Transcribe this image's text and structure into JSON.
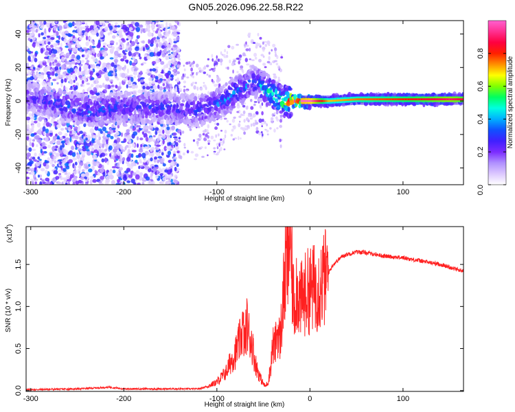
{
  "figure_title": "GN05.2026.096.22.58.R22",
  "colors": {
    "series": "#ff2020",
    "axis": "#000000",
    "colormap": [
      "#ffffff",
      "#dcc8ff",
      "#b090ff",
      "#7b2cff",
      "#4020ff",
      "#1050ff",
      "#00b0ff",
      "#00ffe0",
      "#00ff60",
      "#80ff00",
      "#ffff00",
      "#ff9000",
      "#ff2000",
      "#ff0040",
      "#ff3090",
      "#ff60d0"
    ]
  },
  "chart_data": [
    {
      "type": "heatmap",
      "title": "",
      "xlabel": "Height of straight line (km)",
      "ylabel": "Frequency (Hz)",
      "xlim": [
        -305,
        165
      ],
      "ylim": [
        -50,
        48
      ],
      "xticks": [
        -300,
        -200,
        -100,
        0,
        100
      ],
      "yticks": [
        -40,
        -20,
        0,
        20,
        40
      ],
      "grid": false,
      "colorbar": {
        "label": "Normalized spectral amplitude",
        "range": [
          0,
          1
        ],
        "ticks": [
          "0.0",
          "0.2",
          "0.4",
          "0.6",
          "0.8"
        ],
        "tick_values": [
          0.0,
          0.2,
          0.4,
          0.6,
          0.8
        ]
      },
      "description_points": {
        "height_km": [
          -300,
          -240,
          -200,
          -150,
          -120,
          -100,
          -80,
          -60,
          -45,
          -30,
          -15,
          0,
          20,
          50,
          100,
          150,
          165
        ],
        "ridge_frequency_hz": [
          2,
          -6,
          -4,
          -4,
          -6,
          -2,
          5,
          12,
          6,
          0,
          0,
          0,
          0,
          1,
          1,
          1,
          1
        ],
        "ridge_amplitude": [
          0.25,
          0.35,
          0.3,
          0.3,
          0.3,
          0.35,
          0.4,
          0.35,
          0.5,
          0.6,
          0.95,
          0.9,
          0.6,
          0.65,
          0.7,
          0.8,
          0.75
        ]
      }
    },
    {
      "type": "line",
      "title": "",
      "xlabel": "Height of straight line (km)",
      "ylabel": "SNR (10 * v/v)",
      "y_scale_label": "(x10",
      "y_scale_exponent": "4",
      "xlim": [
        -305,
        165
      ],
      "ylim": [
        -0.01,
        1.95
      ],
      "xticks": [
        -300,
        -200,
        -100,
        0,
        100
      ],
      "yticks": [
        0.0,
        0.5,
        1.0,
        1.5
      ],
      "ytick_labels": [
        "0.0",
        "0.5",
        "1.0",
        "1.5"
      ],
      "grid": false,
      "series": [
        {
          "name": "SNR",
          "x": [
            -305,
            -250,
            -215,
            -200,
            -150,
            -120,
            -110,
            -100,
            -90,
            -85,
            -80,
            -75,
            -72,
            -70,
            -68,
            -65,
            -62,
            -60,
            -58,
            -55,
            -52,
            -50,
            -48,
            -45,
            -42,
            -40,
            -38,
            -35,
            -32,
            -30,
            -28,
            -26,
            -25,
            -24,
            -22,
            -20,
            -18,
            -16,
            -15,
            -14,
            -12,
            -10,
            -8,
            -5,
            0,
            5,
            10,
            15,
            20,
            25,
            30,
            35,
            40,
            50,
            60,
            80,
            100,
            120,
            140,
            165
          ],
          "values": [
            0.01,
            0.02,
            0.04,
            0.02,
            0.02,
            0.02,
            0.05,
            0.1,
            0.22,
            0.35,
            0.45,
            0.6,
            0.75,
            0.55,
            0.8,
            0.65,
            0.55,
            0.4,
            0.3,
            0.2,
            0.12,
            0.08,
            0.05,
            0.1,
            0.3,
            0.55,
            0.5,
            0.7,
            0.6,
            0.9,
            1.2,
            1.4,
            1.6,
            1.45,
            1.9,
            1.5,
            1.1,
            1.0,
            1.3,
            1.2,
            1.15,
            1.05,
            1.1,
            1.15,
            1.2,
            1.22,
            1.25,
            1.32,
            1.4,
            1.5,
            1.55,
            1.6,
            1.62,
            1.65,
            1.64,
            1.6,
            1.58,
            1.54,
            1.5,
            1.42
          ]
        }
      ]
    }
  ]
}
